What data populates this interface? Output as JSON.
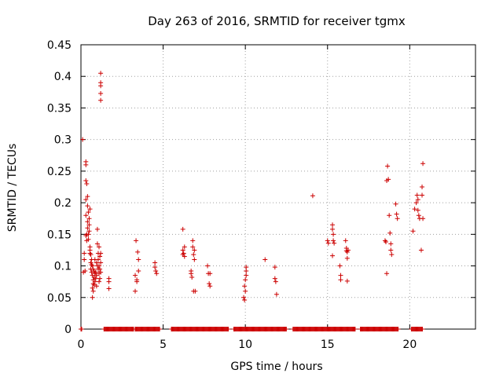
{
  "chart_data": {
    "type": "scatter",
    "title": "Day 263 of 2016, SRMTID for receiver tgmx",
    "xlabel": "GPS time / hours",
    "ylabel": "SRMTID / TECUs",
    "xlim": [
      0,
      24
    ],
    "ylim": [
      0,
      0.45
    ],
    "xticks": [
      0,
      5,
      10,
      15,
      20
    ],
    "xtick_labels": [
      "0",
      "5",
      "10",
      "15",
      "20"
    ],
    "yticks": [
      0,
      0.05,
      0.1,
      0.15,
      0.2,
      0.25,
      0.3,
      0.35,
      0.4,
      0.45
    ],
    "ytick_labels": [
      "0",
      "0.05",
      "0.1",
      "0.15",
      "0.2",
      "0.25",
      "0.3",
      "0.35",
      "0.4",
      "0.45"
    ],
    "grid": true,
    "marker": "+",
    "color": "#cc0000",
    "series": [
      {
        "name": "SRMTID",
        "points": [
          [
            0.1,
            0.3
          ],
          [
            0.15,
            0.09
          ],
          [
            0.2,
            0.12
          ],
          [
            0.2,
            0.11
          ],
          [
            0.25,
            0.092
          ],
          [
            0.3,
            0.265
          ],
          [
            0.3,
            0.26
          ],
          [
            0.3,
            0.235
          ],
          [
            0.3,
            0.205
          ],
          [
            0.3,
            0.18
          ],
          [
            0.3,
            0.148
          ],
          [
            0.35,
            0.15
          ],
          [
            0.35,
            0.14
          ],
          [
            0.35,
            0.23
          ],
          [
            0.4,
            0.21
          ],
          [
            0.4,
            0.195
          ],
          [
            0.4,
            0.17
          ],
          [
            0.4,
            0.16
          ],
          [
            0.45,
            0.185
          ],
          [
            0.45,
            0.15
          ],
          [
            0.45,
            0.142
          ],
          [
            0.5,
            0.175
          ],
          [
            0.5,
            0.165
          ],
          [
            0.5,
            0.155
          ],
          [
            0.55,
            0.19
          ],
          [
            0.55,
            0.13
          ],
          [
            0.55,
            0.125
          ],
          [
            0.55,
            0.12
          ],
          [
            0.6,
            0.118
          ],
          [
            0.6,
            0.105
          ],
          [
            0.6,
            0.095
          ],
          [
            0.65,
            0.11
          ],
          [
            0.65,
            0.102
          ],
          [
            0.65,
            0.09
          ],
          [
            0.7,
            0.1
          ],
          [
            0.7,
            0.085
          ],
          [
            0.7,
            0.065
          ],
          [
            0.7,
            0.05
          ],
          [
            0.75,
            0.095
          ],
          [
            0.75,
            0.078
          ],
          [
            0.75,
            0.072
          ],
          [
            0.75,
            0.06
          ],
          [
            0.8,
            0.092
          ],
          [
            0.8,
            0.082
          ],
          [
            0.8,
            0.07
          ],
          [
            0.85,
            0.11
          ],
          [
            0.85,
            0.088
          ],
          [
            0.85,
            0.075
          ],
          [
            0.9,
            0.09
          ],
          [
            0.9,
            0.08
          ],
          [
            0.95,
            0.105
          ],
          [
            0.95,
            0.085
          ],
          [
            0.95,
            0.068
          ],
          [
            1.0,
            0.158
          ],
          [
            1.0,
            0.135
          ],
          [
            1.0,
            0.1
          ],
          [
            1.05,
            0.12
          ],
          [
            1.05,
            0.11
          ],
          [
            1.05,
            0.095
          ],
          [
            1.1,
            0.13
          ],
          [
            1.1,
            0.1
          ],
          [
            1.1,
            0.088
          ],
          [
            1.1,
            0.075
          ],
          [
            1.15,
            0.115
          ],
          [
            1.15,
            0.095
          ],
          [
            1.15,
            0.08
          ],
          [
            1.2,
            0.405
          ],
          [
            1.2,
            0.39
          ],
          [
            1.2,
            0.385
          ],
          [
            1.2,
            0.373
          ],
          [
            1.2,
            0.362
          ],
          [
            1.2,
            0.12
          ],
          [
            1.2,
            0.105
          ],
          [
            1.2,
            0.09
          ],
          [
            1.7,
            0.08
          ],
          [
            1.7,
            0.075
          ],
          [
            1.7,
            0.064
          ],
          [
            3.3,
            0.085
          ],
          [
            3.3,
            0.06
          ],
          [
            3.35,
            0.14
          ],
          [
            3.4,
            0.075
          ],
          [
            3.4,
            0.078
          ],
          [
            3.45,
            0.122
          ],
          [
            3.5,
            0.11
          ],
          [
            3.5,
            0.092
          ],
          [
            4.5,
            0.105
          ],
          [
            4.5,
            0.098
          ],
          [
            4.55,
            0.092
          ],
          [
            4.6,
            0.088
          ],
          [
            6.2,
            0.158
          ],
          [
            6.2,
            0.125
          ],
          [
            6.2,
            0.118
          ],
          [
            6.25,
            0.12
          ],
          [
            6.3,
            0.13
          ],
          [
            6.3,
            0.115
          ],
          [
            6.7,
            0.092
          ],
          [
            6.7,
            0.088
          ],
          [
            6.75,
            0.082
          ],
          [
            6.8,
            0.14
          ],
          [
            6.8,
            0.13
          ],
          [
            6.85,
            0.118
          ],
          [
            6.85,
            0.06
          ],
          [
            6.9,
            0.125
          ],
          [
            6.9,
            0.11
          ],
          [
            6.95,
            0.06
          ],
          [
            7.7,
            0.1
          ],
          [
            7.75,
            0.088
          ],
          [
            7.8,
            0.072
          ],
          [
            7.85,
            0.068
          ],
          [
            7.85,
            0.088
          ],
          [
            9.9,
            0.05
          ],
          [
            9.95,
            0.046
          ],
          [
            9.95,
            0.068
          ],
          [
            10.0,
            0.06
          ],
          [
            10.0,
            0.078
          ],
          [
            10.05,
            0.098
          ],
          [
            10.05,
            0.092
          ],
          [
            10.05,
            0.085
          ],
          [
            11.2,
            0.11
          ],
          [
            11.8,
            0.098
          ],
          [
            11.8,
            0.08
          ],
          [
            11.85,
            0.075
          ],
          [
            11.9,
            0.055
          ],
          [
            14.1,
            0.211
          ],
          [
            15.0,
            0.14
          ],
          [
            15.05,
            0.136
          ],
          [
            15.3,
            0.116
          ],
          [
            15.3,
            0.165
          ],
          [
            15.3,
            0.158
          ],
          [
            15.35,
            0.15
          ],
          [
            15.35,
            0.14
          ],
          [
            15.4,
            0.136
          ],
          [
            15.75,
            0.1
          ],
          [
            15.8,
            0.085
          ],
          [
            15.8,
            0.078
          ],
          [
            16.1,
            0.14
          ],
          [
            16.15,
            0.128
          ],
          [
            16.15,
            0.124
          ],
          [
            16.2,
            0.122
          ],
          [
            16.25,
            0.125
          ],
          [
            16.2,
            0.112
          ],
          [
            16.2,
            0.076
          ],
          [
            18.5,
            0.14
          ],
          [
            18.55,
            0.138
          ],
          [
            18.6,
            0.088
          ],
          [
            18.6,
            0.235
          ],
          [
            18.65,
            0.258
          ],
          [
            18.7,
            0.237
          ],
          [
            18.75,
            0.18
          ],
          [
            18.8,
            0.152
          ],
          [
            18.85,
            0.135
          ],
          [
            18.85,
            0.125
          ],
          [
            18.9,
            0.118
          ],
          [
            19.15,
            0.198
          ],
          [
            19.2,
            0.182
          ],
          [
            19.25,
            0.175
          ],
          [
            20.2,
            0.155
          ],
          [
            20.3,
            0.19
          ],
          [
            20.4,
            0.2
          ],
          [
            20.45,
            0.212
          ],
          [
            20.5,
            0.205
          ],
          [
            20.5,
            0.188
          ],
          [
            20.55,
            0.18
          ],
          [
            20.6,
            0.175
          ],
          [
            20.7,
            0.125
          ],
          [
            20.75,
            0.225
          ],
          [
            20.75,
            0.212
          ],
          [
            20.8,
            0.262
          ],
          [
            20.8,
            0.175
          ]
        ],
        "zero_segments": [
          [
            0.0,
            0.05
          ],
          [
            1.4,
            3.2
          ],
          [
            3.3,
            4.8
          ],
          [
            5.5,
            9.0
          ],
          [
            9.3,
            12.5
          ],
          [
            12.9,
            16.7
          ],
          [
            17.0,
            19.3
          ],
          [
            20.1,
            20.8
          ]
        ]
      }
    ]
  }
}
